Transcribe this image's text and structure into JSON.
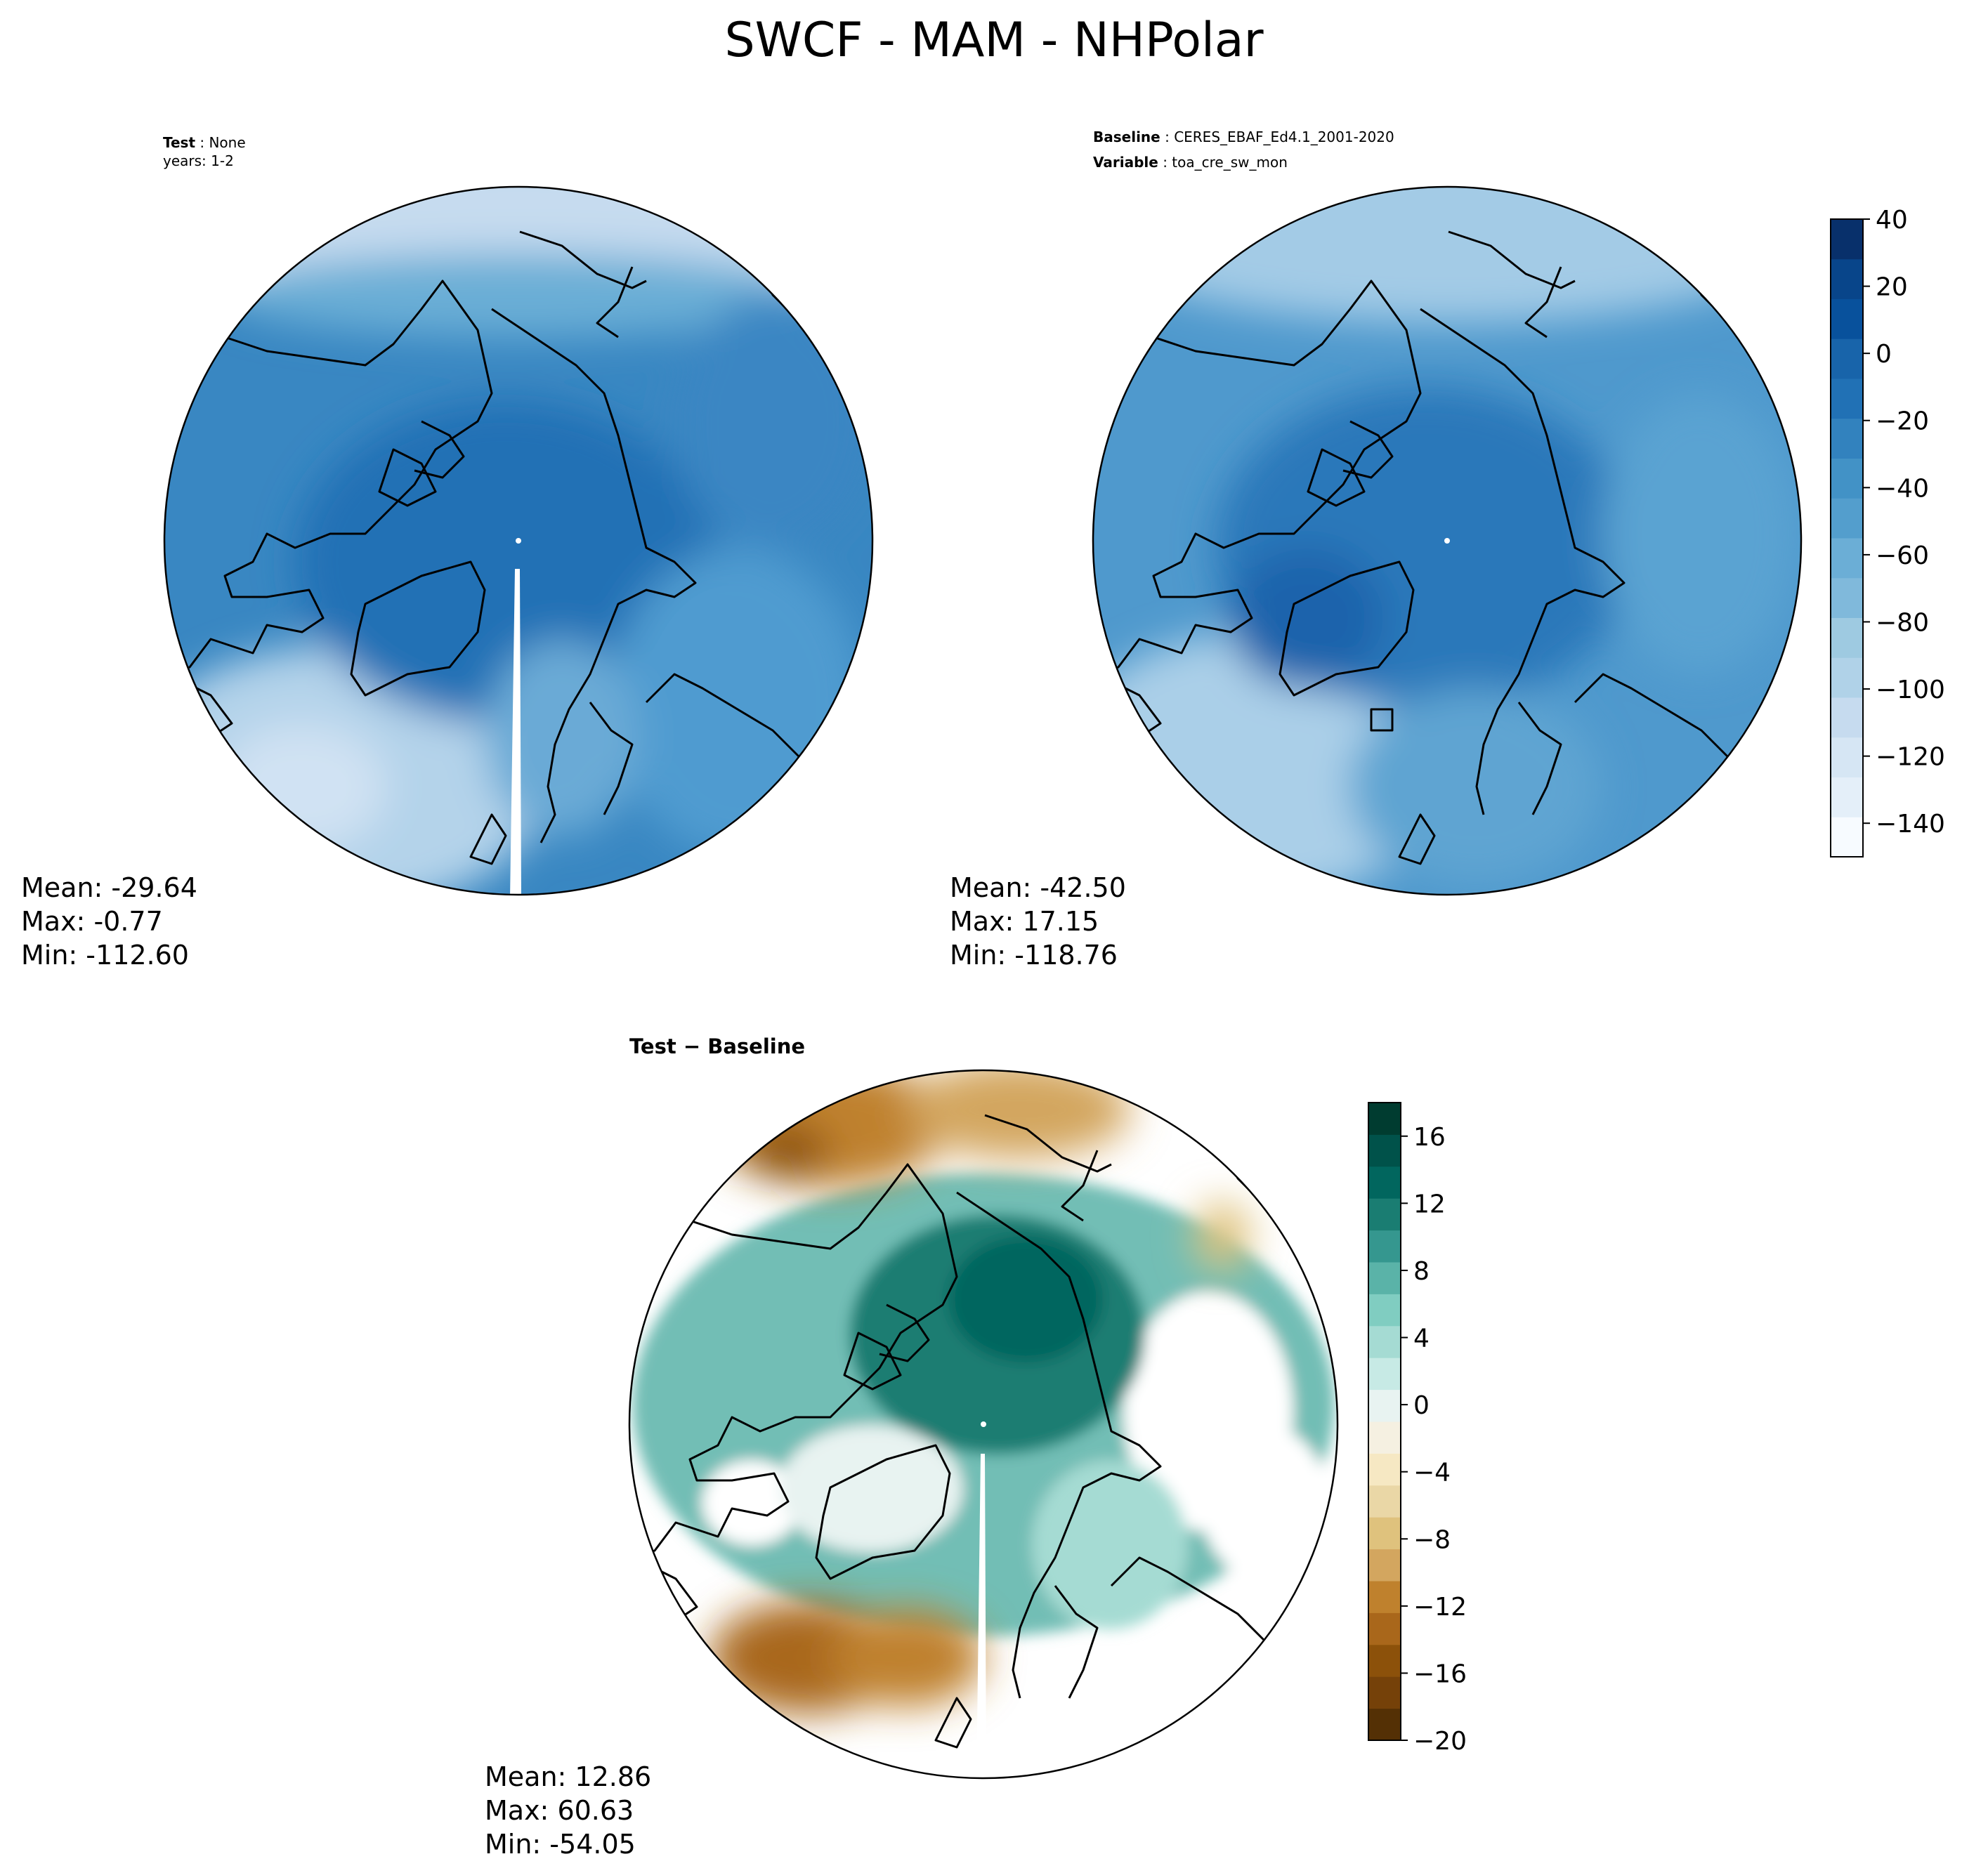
{
  "figure": {
    "title": "SWCF - MAM - NHPolar"
  },
  "panels": {
    "test": {
      "label_key": "Test",
      "label_value": "None",
      "years": "years: 1-2",
      "mean": "Mean: -29.64",
      "max": "Max: -0.77",
      "min": "Min: -112.60"
    },
    "baseline": {
      "label_key": "Baseline",
      "label_value": "CERES_EBAF_Ed4.1_2001-2020",
      "variable_key": "Variable",
      "variable_value": "toa_cre_sw_mon",
      "mean": "Mean: -42.50",
      "max": "Max: 17.15",
      "min": "Min: -118.76"
    },
    "diff": {
      "title": "Test − Baseline",
      "mean": "Mean: 12.86",
      "max": "Max: 60.63",
      "min": "Min: -54.05"
    }
  },
  "colorbars": {
    "main": {
      "ticks": [
        "40",
        "20",
        "0",
        "−20",
        "−40",
        "−60",
        "−80",
        "−100",
        "−120",
        "−140"
      ],
      "colors": [
        "#f7fbff",
        "#e4eff9",
        "#d6e6f4",
        "#c6dbef",
        "#b0d2e8",
        "#9ecae1",
        "#80b9db",
        "#6baed6",
        "#539ecd",
        "#4292c6",
        "#3282be",
        "#2171b5",
        "#1864aa",
        "#08519c",
        "#08458a",
        "#08306b"
      ],
      "min": -150,
      "max": 40
    },
    "diff": {
      "ticks": [
        "16",
        "12",
        "8",
        "4",
        "0",
        "−4",
        "−8",
        "−12",
        "−16",
        "−20"
      ],
      "colors": [
        "#543005",
        "#754109",
        "#8c510a",
        "#a9671b",
        "#bf812d",
        "#d3a65f",
        "#dfc27d",
        "#ead7a6",
        "#f6e8c3",
        "#f5f0e1",
        "#e8f3f1",
        "#c7eae5",
        "#a5dbd3",
        "#80cdc1",
        "#5ab3a8",
        "#35978f",
        "#1a7d72",
        "#01665e",
        "#00524a",
        "#003c30"
      ],
      "min": -20,
      "max": 18
    }
  }
}
